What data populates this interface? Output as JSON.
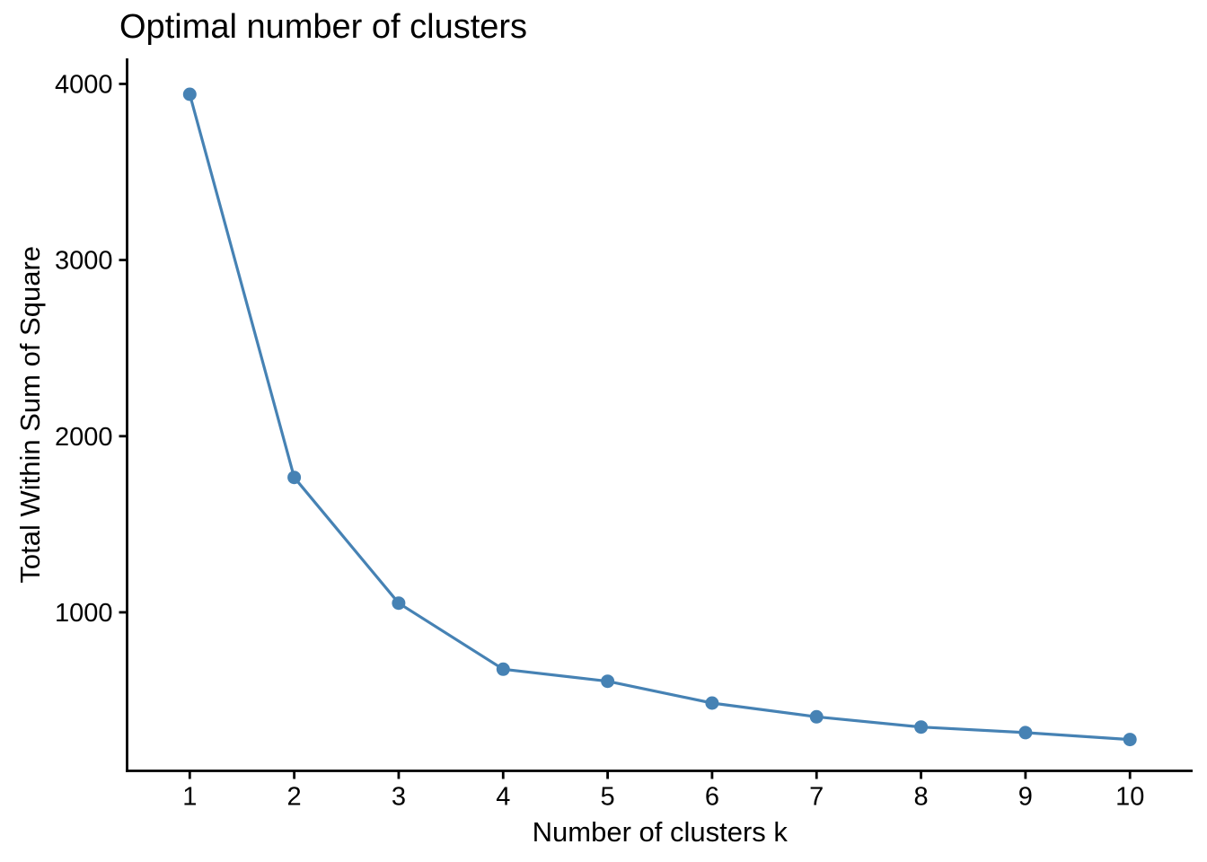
{
  "figure": {
    "title": "Optimal number of clusters",
    "xlabel": "Number of clusters k",
    "ylabel": "Total Within Sum of Square"
  },
  "chart_data": {
    "type": "line",
    "title": "Optimal number of clusters",
    "xlabel": "Number of clusters k",
    "ylabel": "Total Within Sum of Square",
    "x": [
      1,
      2,
      3,
      4,
      5,
      6,
      7,
      8,
      9,
      10
    ],
    "y": [
      3941,
      1766,
      1052,
      677,
      609,
      485,
      407,
      349,
      317,
      278
    ],
    "xticks": [
      1,
      2,
      3,
      4,
      5,
      6,
      7,
      8,
      9,
      10
    ],
    "yticks": [
      1000,
      2000,
      3000,
      4000
    ],
    "xlim": [
      0.4,
      10.6
    ],
    "ylim": [
      100,
      4145
    ],
    "grid": false,
    "legend_position": "none",
    "series_name": "total-wss",
    "series_color": "#4682B4",
    "axis_color": "#000000",
    "text_color": "#000000",
    "background_color": "#FFFFFF",
    "marker": "circle",
    "marker_radius": 7.5,
    "line_width": 3.2,
    "axis_line_width": 2.8,
    "tick_length": 9
  }
}
